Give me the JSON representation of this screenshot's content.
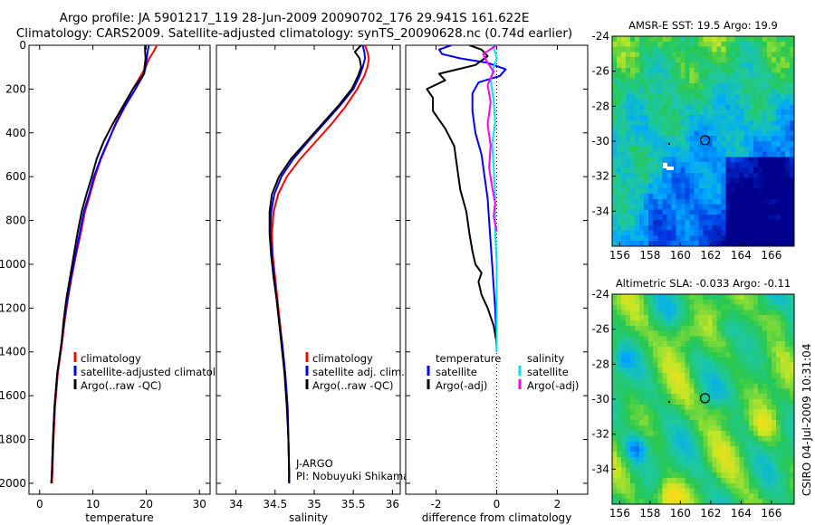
{
  "header": {
    "line1": "Argo profile: JA 5901217_119 28-Jun-2009 20090702_176 29.941S 161.622E",
    "line2": "Climatology: CARS2009. Satellite-adjusted climatology: synTS_20090628.nc (0.74d earlier)"
  },
  "footer": {
    "stamp": "CSIRO 04-Jul-2009 10:31:04"
  },
  "colors": {
    "climatology": "#ff0000",
    "satellite": "#0000ff",
    "argo": "#000000",
    "cyan": "#00e5ee",
    "magenta": "#ff00ff"
  },
  "chart_data": [
    {
      "type": "line",
      "id": "temperature",
      "xlabel": "temperature",
      "ylabel": "",
      "xlim": [
        -2,
        32
      ],
      "ylim": [
        2050,
        0
      ],
      "xticks": [
        0,
        10,
        20,
        30
      ],
      "yticks": [
        0,
        200,
        400,
        600,
        800,
        1000,
        1200,
        1400,
        1600,
        1800,
        2000
      ],
      "legend": [
        "climatology",
        "satellite-adjusted climatology",
        "Argo(..raw -QC)"
      ],
      "legend_position": "bottom-right",
      "series": [
        {
          "name": "climatology",
          "color": "#ff0000",
          "x": [
            22.0,
            21.5,
            20.6,
            19.9,
            19.2,
            17.5,
            15.8,
            14.2,
            12.9,
            11.5,
            10.4,
            9.5,
            8.5,
            7.7,
            6.8,
            6.0,
            5.3,
            4.7,
            4.2,
            3.4,
            2.9,
            2.6,
            2.4,
            2.3
          ],
          "y": [
            0,
            25,
            60,
            100,
            130,
            200,
            280,
            360,
            440,
            520,
            600,
            680,
            760,
            860,
            960,
            1060,
            1160,
            1260,
            1360,
            1500,
            1650,
            1800,
            1950,
            2000
          ]
        },
        {
          "name": "satellite-adjusted climatology",
          "color": "#0000ff",
          "x": [
            20.5,
            20.3,
            20.1,
            19.9,
            19.6,
            18.0,
            16.0,
            14.3,
            12.8,
            11.4,
            10.2,
            9.3,
            8.3,
            7.5,
            6.7,
            5.9,
            5.2,
            4.6,
            4.1,
            3.3,
            2.8,
            2.5,
            2.3,
            2.2
          ],
          "y": [
            0,
            25,
            60,
            100,
            130,
            200,
            280,
            360,
            440,
            520,
            600,
            680,
            760,
            860,
            960,
            1060,
            1160,
            1260,
            1360,
            1500,
            1650,
            1800,
            1950,
            2000
          ]
        },
        {
          "name": "Argo(..raw -QC)",
          "color": "#000000",
          "x": [
            19.8,
            19.8,
            19.9,
            19.7,
            19.6,
            17.5,
            15.6,
            13.7,
            12.0,
            10.7,
            9.8,
            8.8,
            7.9,
            7.1,
            6.4,
            5.7,
            5.0,
            4.5,
            4.1,
            3.3,
            2.8,
            2.5,
            2.3,
            2.2
          ],
          "y": [
            0,
            25,
            60,
            100,
            130,
            200,
            280,
            360,
            440,
            520,
            600,
            680,
            760,
            860,
            960,
            1060,
            1160,
            1260,
            1360,
            1500,
            1650,
            1800,
            1950,
            2000
          ]
        }
      ]
    },
    {
      "type": "line",
      "id": "salinity",
      "xlabel": "salinity",
      "xlim": [
        33.75,
        36.1
      ],
      "ylim": [
        2050,
        0
      ],
      "xticks": [
        34,
        34.5,
        35,
        35.5,
        36
      ],
      "legend": [
        "climatology",
        "satellite adj. clim.",
        "Argo(..raw -QC)"
      ],
      "legend_position": "bottom-right",
      "annotation": [
        "J-ARGO",
        "PI: Nobuyuki Shikama"
      ],
      "series": [
        {
          "name": "climatology",
          "color": "#ff0000",
          "x": [
            35.65,
            35.68,
            35.7,
            35.68,
            35.64,
            35.55,
            35.4,
            35.22,
            35.02,
            34.82,
            34.65,
            34.54,
            34.48,
            34.46,
            34.47,
            34.5,
            34.53,
            34.56,
            34.59,
            34.63,
            34.66,
            34.67,
            34.68,
            34.68
          ],
          "y": [
            0,
            30,
            60,
            100,
            140,
            200,
            280,
            360,
            440,
            520,
            600,
            680,
            760,
            860,
            960,
            1060,
            1160,
            1260,
            1360,
            1500,
            1650,
            1800,
            1950,
            2000
          ]
        },
        {
          "name": "satellite adj. clim.",
          "color": "#0000ff",
          "x": [
            35.62,
            35.64,
            35.65,
            35.62,
            35.58,
            35.5,
            35.32,
            35.12,
            34.92,
            34.73,
            34.58,
            34.49,
            34.45,
            34.44,
            34.46,
            34.49,
            34.52,
            34.55,
            34.59,
            34.63,
            34.66,
            34.67,
            34.68,
            34.68
          ],
          "y": [
            0,
            30,
            60,
            100,
            140,
            200,
            280,
            360,
            440,
            520,
            600,
            680,
            760,
            860,
            960,
            1060,
            1160,
            1260,
            1360,
            1500,
            1650,
            1800,
            1950,
            2000
          ]
        },
        {
          "name": "Argo(..raw -QC)",
          "color": "#000000",
          "x": [
            35.6,
            35.52,
            35.58,
            35.6,
            35.56,
            35.48,
            35.3,
            35.1,
            34.9,
            34.7,
            34.55,
            34.46,
            34.43,
            34.43,
            34.45,
            34.48,
            34.52,
            34.55,
            34.58,
            34.62,
            34.65,
            34.67,
            34.68,
            34.68
          ],
          "y": [
            0,
            30,
            60,
            100,
            140,
            200,
            280,
            360,
            440,
            520,
            600,
            680,
            760,
            860,
            960,
            1060,
            1160,
            1260,
            1360,
            1500,
            1650,
            1800,
            1950,
            2000
          ]
        }
      ]
    },
    {
      "type": "line",
      "id": "difference",
      "xlabel": "difference from climatology",
      "xlim": [
        -3,
        3
      ],
      "ylim": [
        2050,
        0
      ],
      "xticks": [
        -2,
        0,
        2
      ],
      "legend_groups": [
        {
          "title": "temperature",
          "items": [
            "satellite",
            "Argo(-adj)"
          ]
        },
        {
          "title": "salinity",
          "items": [
            "satellite",
            "Argo(-adj)"
          ]
        }
      ],
      "legend_position": "bottom",
      "series": [
        {
          "name": "temperature satellite",
          "color": "#0000ff",
          "x": [
            -1.5,
            -1.9,
            -1.8,
            -1.2,
            -0.3,
            0.3,
            0.1,
            -0.6,
            -0.8,
            -0.8,
            -0.7,
            -0.5,
            -0.4,
            -0.3,
            -0.25,
            -0.2,
            -0.15,
            -0.1,
            -0.05,
            -0.02,
            0.0
          ],
          "y": [
            0,
            20,
            40,
            60,
            80,
            110,
            140,
            170,
            220,
            300,
            400,
            500,
            600,
            700,
            800,
            900,
            1000,
            1100,
            1200,
            1300,
            1400
          ]
        },
        {
          "name": "temperature Argo(-adj)",
          "color": "#000000",
          "x": [
            -0.9,
            -0.5,
            -0.3,
            -0.7,
            -1.9,
            -1.7,
            -2.3,
            -2.1,
            -2.1,
            -1.7,
            -1.4,
            -1.3,
            -1.2,
            -1.0,
            -0.9,
            -0.8,
            -0.7,
            -0.5,
            -0.6,
            -0.5,
            -0.3,
            -0.1,
            0.0
          ],
          "y": [
            0,
            20,
            50,
            90,
            130,
            160,
            200,
            240,
            300,
            380,
            460,
            560,
            660,
            760,
            860,
            940,
            1000,
            1040,
            1080,
            1140,
            1200,
            1280,
            1360
          ]
        },
        {
          "name": "salinity satellite",
          "color": "#00e5ee",
          "x": [
            -0.15,
            -0.05,
            0.0,
            -0.1,
            -0.2,
            -0.1,
            -0.05,
            -0.15,
            -0.1,
            -0.05,
            -0.05,
            0.0,
            0.0,
            0.0
          ],
          "y": [
            0,
            30,
            60,
            100,
            160,
            250,
            350,
            450,
            550,
            700,
            850,
            1000,
            1200,
            1400
          ]
        },
        {
          "name": "salinity Argo(-adj)",
          "color": "#ff00ff",
          "x": [
            0.0,
            -0.45,
            -0.3,
            -0.1,
            -0.3,
            -0.2,
            -0.3,
            -0.2,
            -0.25,
            -0.15,
            -0.05,
            -0.1,
            0.0
          ],
          "y": [
            0,
            40,
            80,
            120,
            180,
            260,
            360,
            460,
            560,
            650,
            720,
            780,
            850
          ]
        }
      ]
    },
    {
      "type": "heatmap",
      "id": "sst_map",
      "title": "AMSR-E SST: 19.5 Argo: 19.9",
      "xlim": [
        155.5,
        167.5
      ],
      "ylim": [
        -36,
        -24
      ],
      "xticks": [
        156,
        158,
        160,
        162,
        164,
        166
      ],
      "yticks": [
        -24,
        -26,
        -28,
        -30,
        -32,
        -34
      ],
      "marker": {
        "x": 161.622,
        "y": -29.941
      }
    },
    {
      "type": "heatmap",
      "id": "sla_map",
      "title": "Altimetric SLA: -0.033 Argo: -0.11",
      "xlim": [
        155.5,
        167.5
      ],
      "ylim": [
        -36,
        -24
      ],
      "xticks": [
        156,
        158,
        160,
        162,
        164,
        166
      ],
      "yticks": [
        -24,
        -26,
        -28,
        -30,
        -32,
        -34
      ],
      "marker": {
        "x": 161.622,
        "y": -29.941
      }
    }
  ]
}
